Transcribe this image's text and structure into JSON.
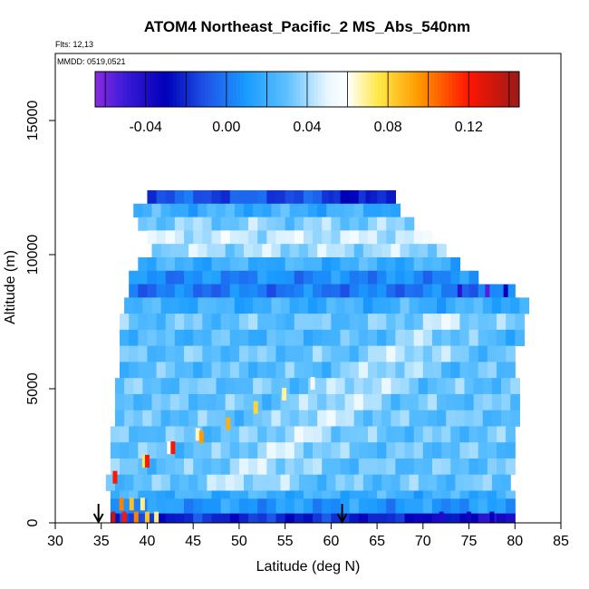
{
  "chart_data": {
    "type": "heatmap",
    "title": "ATOM4 Northeast_Pacific_2 MS_Abs_540nm",
    "flights_text": "Flts: 12,13",
    "dates_text": "MMDD: 0519,0521",
    "xlabel": "Latitude (deg N)",
    "ylabel": "Altitude (m)",
    "xlim": [
      30,
      85
    ],
    "ylim": [
      0,
      17500
    ],
    "x_ticks": [
      30,
      35,
      40,
      45,
      50,
      55,
      60,
      65,
      70,
      75,
      80,
      85
    ],
    "y_ticks": [
      0,
      5000,
      10000,
      15000
    ],
    "colorbar": {
      "min": -0.065,
      "max": 0.145,
      "tick_values": [
        -0.04,
        0.0,
        0.04,
        0.08,
        0.12
      ],
      "tick_labels": [
        "-0.04",
        "0.00",
        "0.04",
        "0.08",
        "0.12"
      ],
      "color_stops": [
        {
          "v": -0.065,
          "c": "#8a2be2"
        },
        {
          "v": -0.05,
          "c": "#3a1ad8"
        },
        {
          "v": -0.03,
          "c": "#0000b8"
        },
        {
          "v": -0.01,
          "c": "#1e55e8"
        },
        {
          "v": 0.01,
          "c": "#1a9cff"
        },
        {
          "v": 0.03,
          "c": "#5ec0ff"
        },
        {
          "v": 0.05,
          "c": "#e8f7ff"
        },
        {
          "v": 0.06,
          "c": "#ffffff"
        },
        {
          "v": 0.075,
          "c": "#ffe94a"
        },
        {
          "v": 0.095,
          "c": "#ff9a00"
        },
        {
          "v": 0.12,
          "c": "#ff1500"
        },
        {
          "v": 0.145,
          "c": "#9a1a1a"
        }
      ]
    },
    "flight_markers_lat": [
      34.7,
      61.2
    ],
    "profile_bands": [
      {
        "alt": [
          11900,
          12400
        ],
        "lat": [
          40.0,
          66.5
        ],
        "value": -0.01
      },
      {
        "alt": [
          11400,
          11900
        ],
        "lat": [
          38.5,
          67.5
        ],
        "value": 0.02
      },
      {
        "alt": [
          10900,
          11400
        ],
        "lat": [
          39.0,
          69.0
        ],
        "value": 0.035
      },
      {
        "alt": [
          10400,
          10900
        ],
        "lat": [
          40.0,
          70.5
        ],
        "value": 0.045
      },
      {
        "alt": [
          9900,
          10400
        ],
        "lat": [
          40.5,
          72.0
        ],
        "value": 0.04
      },
      {
        "alt": [
          9400,
          9900
        ],
        "lat": [
          39.0,
          73.5
        ],
        "value": 0.02
      },
      {
        "alt": [
          8900,
          9400
        ],
        "lat": [
          38.0,
          76.0
        ],
        "value": 0.005
      },
      {
        "alt": [
          8400,
          8900
        ],
        "lat": [
          38.0,
          79.5
        ],
        "value": 0.0
      },
      {
        "alt": [
          7800,
          8400
        ],
        "lat": [
          37.5,
          81.0
        ],
        "value": 0.02
      },
      {
        "alt": [
          7200,
          7800
        ],
        "lat": [
          37.0,
          80.5
        ],
        "value": 0.03
      },
      {
        "alt": [
          6600,
          7200
        ],
        "lat": [
          37.0,
          80.5
        ],
        "value": 0.025
      },
      {
        "alt": [
          6000,
          6600
        ],
        "lat": [
          37.0,
          80.0
        ],
        "value": 0.03
      },
      {
        "alt": [
          5400,
          6000
        ],
        "lat": [
          37.0,
          80.0
        ],
        "value": 0.028
      },
      {
        "alt": [
          4800,
          5400
        ],
        "lat": [
          36.5,
          80.0
        ],
        "value": 0.03
      },
      {
        "alt": [
          4200,
          4800
        ],
        "lat": [
          36.5,
          80.0
        ],
        "value": 0.03
      },
      {
        "alt": [
          3600,
          4200
        ],
        "lat": [
          36.5,
          80.0
        ],
        "value": 0.03
      },
      {
        "alt": [
          3000,
          3600
        ],
        "lat": [
          36.0,
          80.0
        ],
        "value": 0.03
      },
      {
        "alt": [
          2400,
          3000
        ],
        "lat": [
          36.0,
          79.5
        ],
        "value": 0.03
      },
      {
        "alt": [
          1800,
          2400
        ],
        "lat": [
          36.0,
          79.5
        ],
        "value": 0.03
      },
      {
        "alt": [
          1200,
          1800
        ],
        "lat": [
          35.5,
          79.5
        ],
        "value": 0.03
      },
      {
        "alt": [
          900,
          1200
        ],
        "lat": [
          36.0,
          79.5
        ],
        "value": 0.02
      },
      {
        "alt": [
          350,
          900
        ],
        "lat": [
          36.0,
          79.5
        ],
        "value": 0.01
      },
      {
        "alt": [
          0,
          350
        ],
        "lat": [
          36.0,
          79.5
        ],
        "value": -0.02
      }
    ],
    "hotspots": [
      {
        "lat": 36.5,
        "alt": 1700,
        "value": 0.12
      },
      {
        "lat": 39.7,
        "alt": 2300,
        "value": 0.075
      },
      {
        "lat": 40.0,
        "alt": 2300,
        "value": 0.12
      },
      {
        "lat": 42.4,
        "alt": 2800,
        "value": 0.06
      },
      {
        "lat": 42.8,
        "alt": 2800,
        "value": 0.12
      },
      {
        "lat": 45.5,
        "alt": 3300,
        "value": 0.065
      },
      {
        "lat": 45.9,
        "alt": 3200,
        "value": 0.095
      },
      {
        "lat": 48.8,
        "alt": 3700,
        "value": 0.09
      },
      {
        "lat": 51.8,
        "alt": 4300,
        "value": 0.08
      },
      {
        "lat": 54.9,
        "alt": 4800,
        "value": 0.068
      },
      {
        "lat": 58.0,
        "alt": 5200,
        "value": 0.055
      },
      {
        "lat": 37.2,
        "alt": 700,
        "value": 0.1
      },
      {
        "lat": 38.3,
        "alt": 700,
        "value": 0.085
      },
      {
        "lat": 39.5,
        "alt": 700,
        "value": 0.07
      },
      {
        "lat": 36.3,
        "alt": 180,
        "value": 0.135
      },
      {
        "lat": 37.5,
        "alt": 180,
        "value": 0.12
      },
      {
        "lat": 38.8,
        "alt": 180,
        "value": 0.1
      },
      {
        "lat": 40.0,
        "alt": 180,
        "value": 0.085
      },
      {
        "lat": 41.0,
        "alt": 180,
        "value": 0.07
      },
      {
        "lat": 72.0,
        "alt": 180,
        "value": -0.04
      },
      {
        "lat": 75.0,
        "alt": 180,
        "value": -0.035
      },
      {
        "lat": 77.5,
        "alt": 180,
        "value": -0.03
      },
      {
        "lat": 74.0,
        "alt": 8650,
        "value": -0.045
      },
      {
        "lat": 77.0,
        "alt": 8650,
        "value": -0.055
      },
      {
        "lat": 79.0,
        "alt": 8650,
        "value": -0.03
      },
      {
        "lat": 60.0,
        "alt": 12150,
        "value": -0.02
      },
      {
        "lat": 64.0,
        "alt": 12150,
        "value": -0.025
      }
    ]
  }
}
